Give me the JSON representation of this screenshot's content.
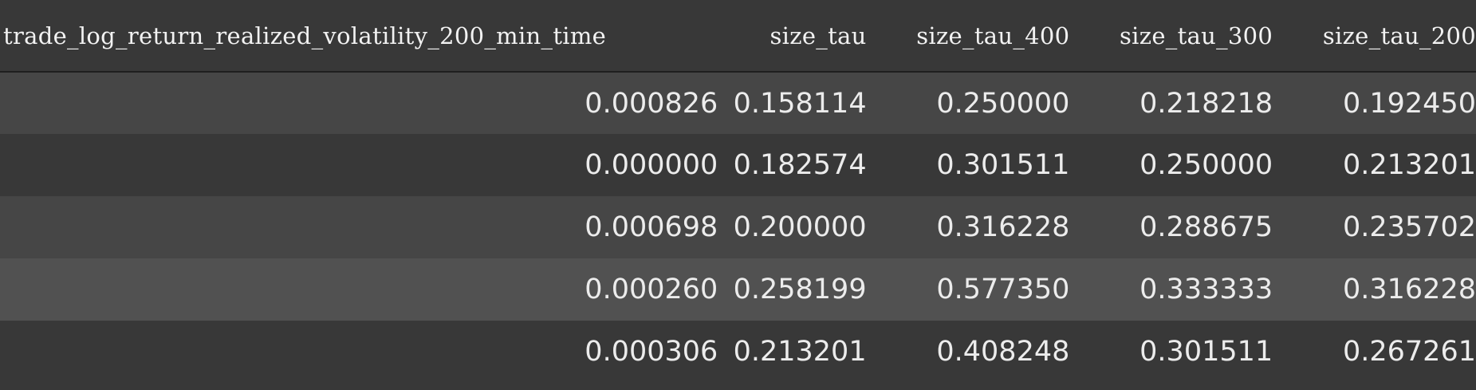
{
  "table": {
    "columns": [
      "trade_log_return_realized_volatility_200_min_time",
      "size_tau",
      "size_tau_400",
      "size_tau_300",
      "size_tau_200"
    ],
    "rows": [
      [
        "0.000826",
        "0.158114",
        "0.250000",
        "0.218218",
        "0.192450"
      ],
      [
        "0.000000",
        "0.182574",
        "0.301511",
        "0.250000",
        "0.213201"
      ],
      [
        "0.000698",
        "0.200000",
        "0.316228",
        "0.288675",
        "0.235702"
      ],
      [
        "0.000260",
        "0.258199",
        "0.577350",
        "0.333333",
        "0.316228"
      ],
      [
        "0.000306",
        "0.213201",
        "0.408248",
        "0.301511",
        "0.267261"
      ]
    ]
  },
  "colors": {
    "background": "#383838",
    "row_alt": "#464646",
    "row_hover": "#515151",
    "text": "#ececec"
  }
}
